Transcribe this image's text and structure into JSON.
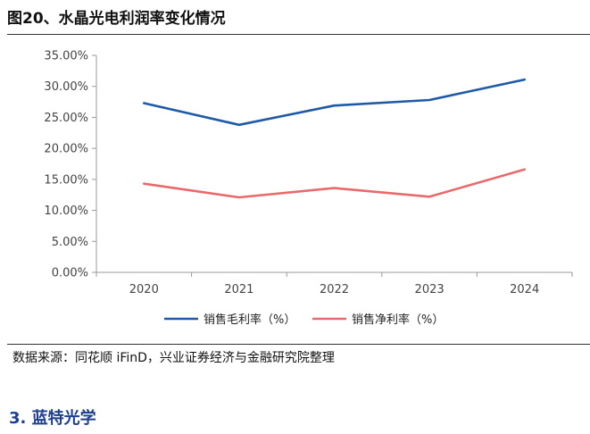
{
  "header": {
    "figure_title": "图20、水晶光电利润率变化情况"
  },
  "footer": {
    "source": "数据来源：同花顺 iFinD，兴业证券经济与金融研究院整理"
  },
  "section": {
    "heading": "3. 蓝特光学"
  },
  "chart_data": {
    "type": "line",
    "title": "",
    "xlabel": "",
    "ylabel": "",
    "categories": [
      "2020",
      "2021",
      "2022",
      "2023",
      "2024"
    ],
    "y_ticks": [
      "0.00%",
      "5.00%",
      "10.00%",
      "15.00%",
      "20.00%",
      "25.00%",
      "30.00%",
      "35.00%"
    ],
    "ylim": [
      0,
      35
    ],
    "grid": false,
    "legend_position": "bottom",
    "series": [
      {
        "name": "销售毛利率（%）",
        "color": "#1f5aa6",
        "values": [
          27.3,
          23.8,
          26.9,
          27.8,
          31.1
        ]
      },
      {
        "name": "销售净利率（%）",
        "color": "#e86a6a",
        "values": [
          14.3,
          12.1,
          13.6,
          12.2,
          16.6
        ]
      }
    ]
  }
}
